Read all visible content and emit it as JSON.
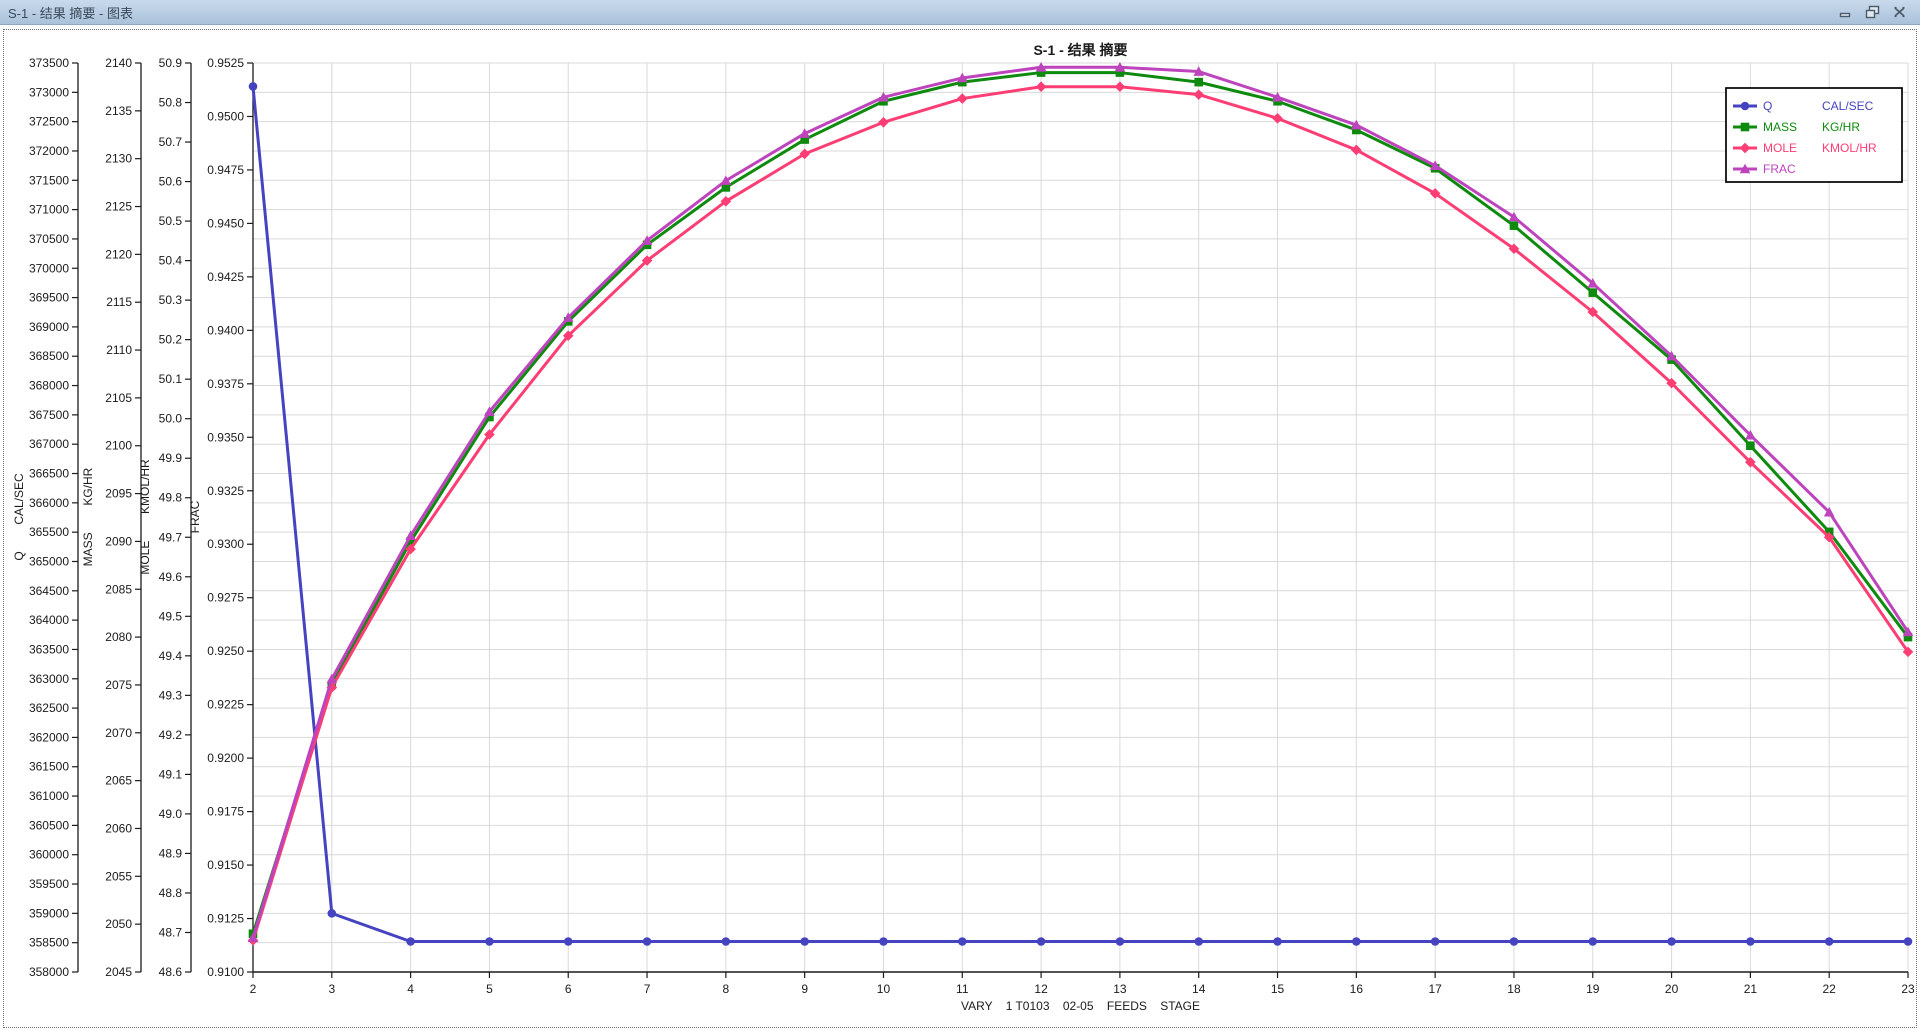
{
  "window": {
    "title": "S-1 - 结果 摘要 - 图表",
    "control_icons": [
      "minimize-icon",
      "restore-icon",
      "close-icon"
    ]
  },
  "chart_data": {
    "type": "line",
    "title": "S-1 - 结果 摘要",
    "xlabel": "VARY    1 T0103    02-05    FEEDS    STAGE",
    "x_ticks": [
      2,
      3,
      4,
      5,
      6,
      7,
      8,
      9,
      10,
      11,
      12,
      13,
      14,
      15,
      16,
      17,
      18,
      19,
      20,
      21,
      22,
      23
    ],
    "x": [
      2,
      3,
      4,
      5,
      6,
      7,
      8,
      9,
      10,
      11,
      12,
      13,
      14,
      15,
      16,
      17,
      18,
      19,
      20,
      21,
      22,
      23
    ],
    "grid": true,
    "legend_position": "top-right",
    "series": [
      {
        "name": "Q",
        "unit": "CAL/SEC",
        "color": "#4543c0",
        "marker": "circle",
        "axis": {
          "min": 358000,
          "max": 373500,
          "step": 500,
          "decimals": 0,
          "title": "Q",
          "unit": "CAL/SEC"
        },
        "values": [
          373100,
          359000,
          358520,
          358520,
          358520,
          358520,
          358520,
          358520,
          358520,
          358520,
          358520,
          358520,
          358520,
          358520,
          358520,
          358520,
          358520,
          358520,
          358520,
          358520,
          358520,
          358520
        ]
      },
      {
        "name": "MASS",
        "unit": "KG/HR",
        "color": "#0e8a0e",
        "marker": "square",
        "axis": {
          "min": 2045,
          "max": 2140,
          "step": 5,
          "decimals": 0,
          "title": "MASS",
          "unit": "KG/HR"
        },
        "values": [
          2049,
          2075,
          2090,
          2103,
          2113,
          2121,
          2127,
          2132,
          2136,
          2138,
          2139,
          2139,
          2138,
          2136,
          2133,
          2129,
          2123,
          2116,
          2109,
          2100,
          2091,
          2080
        ]
      },
      {
        "name": "MOLE",
        "unit": "KMOL/HR",
        "color": "#fc3e74",
        "marker": "diamond",
        "axis": {
          "min": 48.6,
          "max": 50.9,
          "step": 0.1,
          "decimals": 1,
          "title": "MOLE",
          "unit": "KMOL/HR"
        },
        "values": [
          48.68,
          49.32,
          49.67,
          49.96,
          50.21,
          50.4,
          50.55,
          50.67,
          50.75,
          50.81,
          50.84,
          50.84,
          50.82,
          50.76,
          50.68,
          50.57,
          50.43,
          50.27,
          50.09,
          49.89,
          49.7,
          49.41
        ]
      },
      {
        "name": "FRAC",
        "unit": "",
        "color": "#bd44bd",
        "marker": "triangle",
        "axis": {
          "min": 0.91,
          "max": 0.9525,
          "step": 0.0025,
          "decimals": 4,
          "title": "FRAC",
          "unit": ""
        },
        "values": [
          0.9116,
          0.9237,
          0.9304,
          0.9362,
          0.9406,
          0.9442,
          0.947,
          0.9492,
          0.9509,
          0.9518,
          0.9523,
          0.9523,
          0.9521,
          0.9509,
          0.9496,
          0.9477,
          0.9453,
          0.9422,
          0.9388,
          0.9351,
          0.9315,
          0.9259
        ]
      }
    ]
  }
}
